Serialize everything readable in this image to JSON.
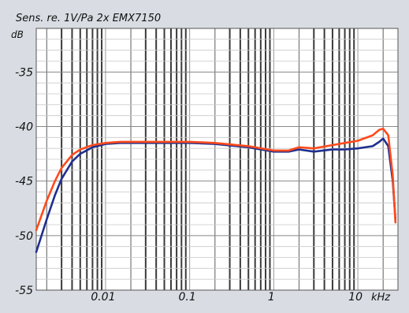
{
  "chart_data": {
    "type": "line",
    "title": "Sens. re. 1V/Pa 2x EMX7150",
    "ylabel": "dB",
    "xlabel": "",
    "x_unit": "kHz",
    "x_scale": "log",
    "xlim": [
      0.0015,
      30
    ],
    "ylim": [
      -55,
      -31
    ],
    "x_ticks": [
      0.01,
      0.1,
      1,
      10
    ],
    "x_tick_labels": [
      "0.01",
      "0.1",
      "1",
      "10"
    ],
    "y_ticks": [
      -55,
      -50,
      -45,
      -40,
      -35
    ],
    "y_tick_labels": [
      "-55",
      "-50",
      "-45",
      "-40",
      "-35"
    ],
    "grid": true,
    "background_color": "#ffffff",
    "frame_color": "#d9dde3",
    "series": [
      {
        "color": "#1f2f8f",
        "x": [
          0.0015,
          0.002,
          0.0025,
          0.003,
          0.004,
          0.005,
          0.007,
          0.01,
          0.015,
          0.02,
          0.05,
          0.1,
          0.2,
          0.5,
          1,
          1.5,
          2,
          3,
          5,
          7,
          10,
          15,
          18,
          20,
          23,
          26,
          28
        ],
        "y": [
          -51.5,
          -48.5,
          -46.3,
          -44.8,
          -43.2,
          -42.5,
          -41.9,
          -41.6,
          -41.5,
          -41.5,
          -41.5,
          -41.5,
          -41.6,
          -41.9,
          -42.3,
          -42.3,
          -42.1,
          -42.3,
          -42.1,
          -42.1,
          -42.0,
          -41.8,
          -41.4,
          -41.1,
          -41.8,
          -45.0,
          -48.5
        ]
      },
      {
        "color": "#ff4a1c",
        "x": [
          0.0015,
          0.002,
          0.0025,
          0.003,
          0.004,
          0.005,
          0.007,
          0.01,
          0.015,
          0.02,
          0.05,
          0.1,
          0.2,
          0.5,
          1,
          1.5,
          2,
          3,
          5,
          7,
          10,
          15,
          18,
          20,
          23,
          26,
          28
        ],
        "y": [
          -49.5,
          -46.8,
          -45.0,
          -43.8,
          -42.6,
          -42.1,
          -41.7,
          -41.5,
          -41.4,
          -41.4,
          -41.4,
          -41.4,
          -41.5,
          -41.8,
          -42.2,
          -42.2,
          -41.9,
          -42.0,
          -41.7,
          -41.5,
          -41.3,
          -40.8,
          -40.3,
          -40.2,
          -40.8,
          -44.5,
          -48.8
        ]
      }
    ]
  }
}
